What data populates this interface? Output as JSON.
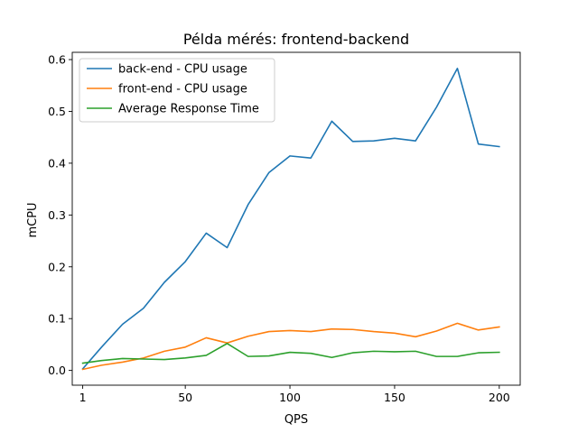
{
  "chart_data": {
    "type": "line",
    "title": "Példa mérés: frontend-backend",
    "xlabel": "QPS",
    "ylabel": "mCPU",
    "xlim": [
      -4,
      210
    ],
    "ylim": [
      -0.0285,
      0.614
    ],
    "xticks": [
      1,
      50,
      100,
      150,
      200
    ],
    "yticks": [
      0.0,
      0.1,
      0.2,
      0.3,
      0.4,
      0.5,
      0.6
    ],
    "ytick_labels": [
      "0.0",
      "0.1",
      "0.2",
      "0.3",
      "0.4",
      "0.5",
      "0.6"
    ],
    "legend_position": "top-left",
    "grid": false,
    "x": [
      1,
      10,
      20,
      30,
      40,
      50,
      60,
      70,
      80,
      90,
      100,
      110,
      120,
      130,
      140,
      150,
      160,
      170,
      180,
      190,
      200
    ],
    "series": [
      {
        "name": "back-end - CPU usage",
        "color": "#1f77b4",
        "values": [
          0.003,
          0.045,
          0.089,
          0.12,
          0.17,
          0.21,
          0.265,
          0.237,
          0.32,
          0.382,
          0.414,
          0.41,
          0.481,
          0.442,
          0.443,
          0.448,
          0.443,
          0.508,
          0.583,
          0.437,
          0.432
        ]
      },
      {
        "name": "front-end - CPU usage",
        "color": "#ff7f0e",
        "values": [
          0.002,
          0.01,
          0.016,
          0.024,
          0.037,
          0.045,
          0.063,
          0.053,
          0.066,
          0.075,
          0.077,
          0.075,
          0.08,
          0.079,
          0.075,
          0.072,
          0.065,
          0.076,
          0.091,
          0.078,
          0.084
        ]
      },
      {
        "name": "Average Response Time",
        "color": "#2ca02c",
        "values": [
          0.014,
          0.019,
          0.023,
          0.022,
          0.021,
          0.024,
          0.029,
          0.052,
          0.027,
          0.028,
          0.035,
          0.033,
          0.025,
          0.034,
          0.037,
          0.036,
          0.037,
          0.027,
          0.027,
          0.034,
          0.035
        ]
      }
    ]
  }
}
